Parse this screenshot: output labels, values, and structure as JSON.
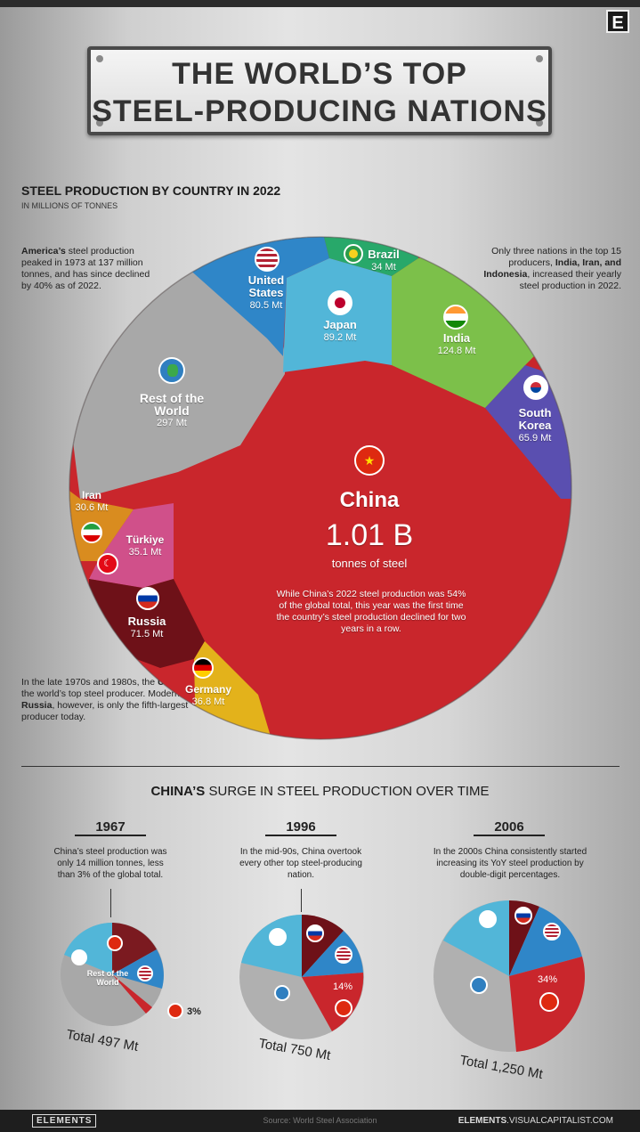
{
  "brand_corner": "E",
  "title": {
    "line1": "THE WORLD’S TOP",
    "line2": "STEEL-PRODUCING NATIONS"
  },
  "main_chart": {
    "heading": "STEEL PRODUCTION BY COUNTRY IN 2022",
    "subheading": "IN MILLIONS OF TONNES",
    "note_left_top": {
      "bold": "America’s",
      "text": " steel production peaked in 1973 at 137 million tonnes, and has since declined by 40% as of 2022."
    },
    "note_right_top": {
      "pre": "Only three nations in the top 15 producers, ",
      "bold": "India, Iran, and Indonesia",
      "post": ", increased their yearly steel production in 2022."
    },
    "note_left_bottom": {
      "pre": "In the late 1970s and 1980s, the ",
      "bold1": "USSR",
      "mid": " was the world’s top steel producer. Modern-day ",
      "bold2": "Russia",
      "post": ", however, is only the fifth-largest producer today."
    },
    "china_label": {
      "name": "China",
      "value": "1.01 B",
      "unit": "tonnes of steel",
      "desc": "While China’s 2022 steel production was 54% of the global total, this year was the first time the country’s steel production declined for two years in a row."
    },
    "labels": {
      "usa": {
        "name": "United States",
        "value": "80.5 Mt"
      },
      "brazil": {
        "name": "Brazil",
        "value": "34 Mt"
      },
      "japan": {
        "name": "Japan",
        "value": "89.2 Mt"
      },
      "india": {
        "name": "India",
        "value": "124.8 Mt"
      },
      "korea": {
        "name": "South Korea",
        "value": "65.9 Mt"
      },
      "row": {
        "name": "Rest of the World",
        "value": "297 Mt"
      },
      "iran": {
        "name": "Iran",
        "value": "30.6 Mt"
      },
      "turkiye": {
        "name": "Türkiye",
        "value": "35.1 Mt"
      },
      "russia": {
        "name": "Russia",
        "value": "71.5 Mt"
      },
      "germany": {
        "name": "Germany",
        "value": "36.8 Mt"
      }
    }
  },
  "chart_data": [
    {
      "type": "voronoi-treemap",
      "title": "STEEL PRODUCTION BY COUNTRY IN 2022",
      "subtitle": "IN MILLIONS OF TONNES",
      "categories": [
        "China",
        "Rest of the World",
        "India",
        "Japan",
        "United States",
        "Russia",
        "South Korea",
        "Germany",
        "Türkiye",
        "Brazil",
        "Iran"
      ],
      "values": [
        1010,
        297,
        124.8,
        89.2,
        80.5,
        71.5,
        65.9,
        36.8,
        35.1,
        34,
        30.6
      ],
      "unit": "Mt",
      "colors": [
        "#c9262c",
        "#a8a8a8",
        "#7cc04a",
        "#52b6d8",
        "#2f86c8",
        "#6e1118",
        "#5a4fb0",
        "#e3b21b",
        "#d0508a",
        "#28a86a",
        "#d98c1f"
      ]
    },
    {
      "type": "pie",
      "title": "CHINA’S SURGE IN STEEL PRODUCTION OVER TIME",
      "year": "1967",
      "total_label": "Total 497 Mt",
      "china_share_percent": 3
    },
    {
      "type": "pie",
      "year": "1996",
      "total_label": "Total 750 Mt",
      "china_share_percent": 14
    },
    {
      "type": "pie",
      "year": "2006",
      "total_label": "Total 1,250 Mt",
      "china_share_percent": 34
    }
  ],
  "timeline": {
    "heading_bold": "CHINA’S",
    "heading_rest": " SURGE IN STEEL PRODUCTION OVER TIME",
    "panels": [
      {
        "year": "1967",
        "note": "China’s steel production was only 14 million tonnes, less than 3% of the global total.",
        "total": "Total 497 Mt",
        "pct": "3%",
        "row_label": "Rest of the World"
      },
      {
        "year": "1996",
        "note": "In the mid-90s, China overtook every other top steel-producing nation.",
        "total": "Total 750 Mt",
        "pct": "14%"
      },
      {
        "year": "2006",
        "note": "In the 2000s China consistently started increasing its YoY steel production by double-digit percentages.",
        "total": "Total 1,250 Mt",
        "pct": "34%"
      }
    ]
  },
  "footer": {
    "brand": "ELEMENTS",
    "source": "Source: World Steel Association",
    "site_bold": "ELEMENTS",
    "site_rest": ".VISUALCAPITALIST.COM"
  }
}
